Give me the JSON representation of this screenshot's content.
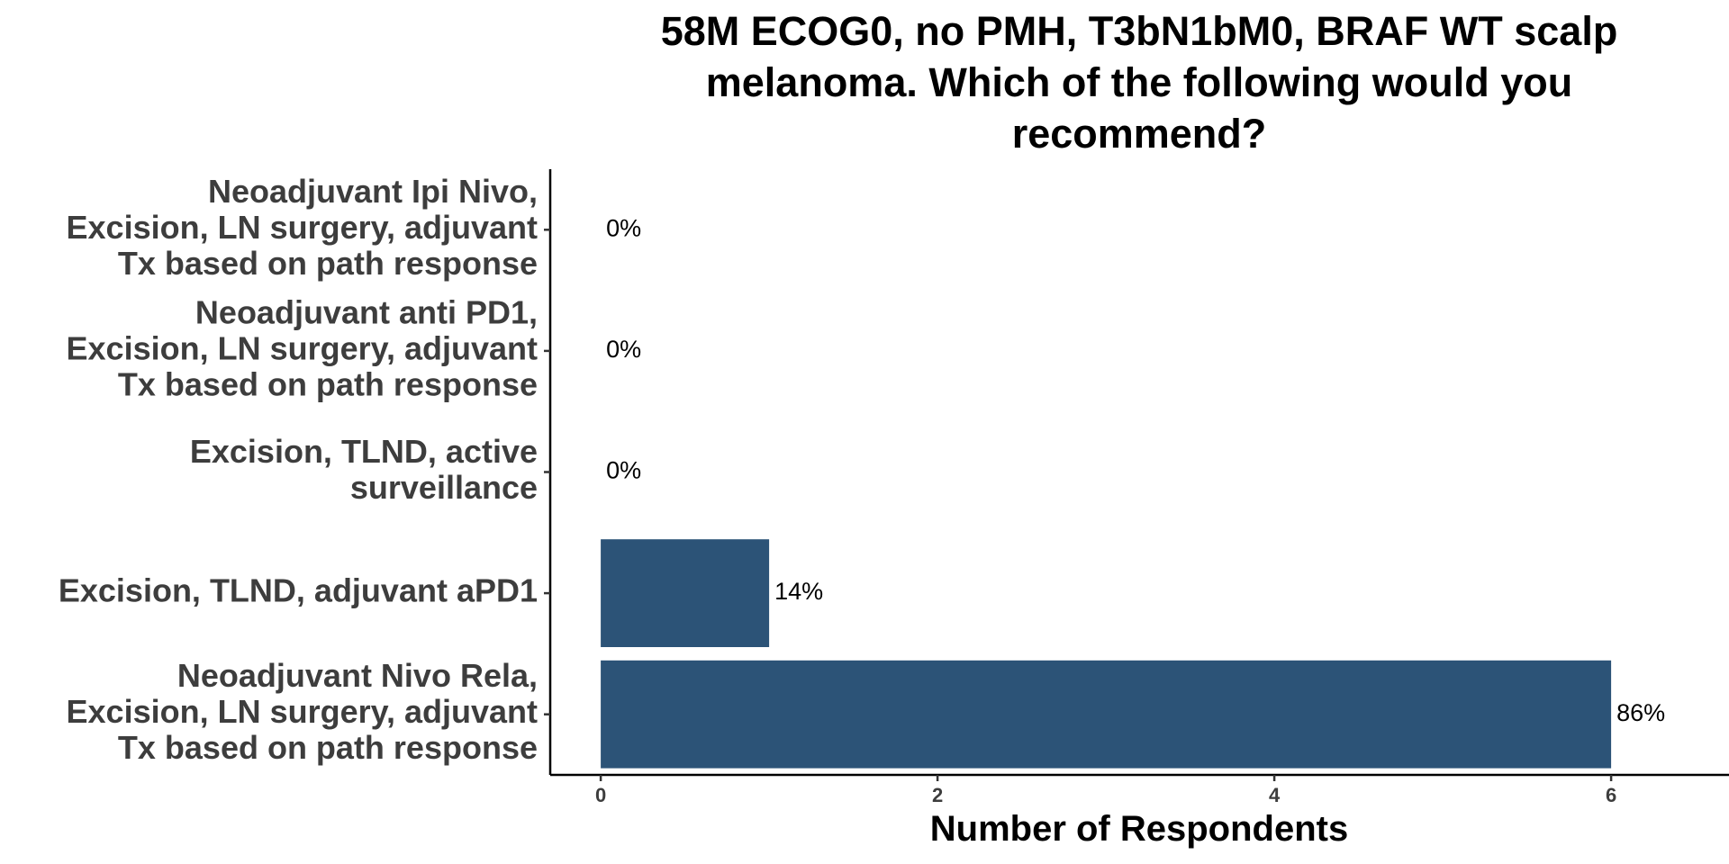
{
  "chart_data": {
    "type": "bar",
    "orientation": "horizontal",
    "title": "58M ECOG0, no PMH, T3bN1bM0, BRAF WT scalp melanoma. Which of the following would you recommend?",
    "title_lines": [
      "58M ECOG0, no PMH, T3bN1bM0, BRAF WT scalp",
      "melanoma. Which of the following would you",
      "recommend?"
    ],
    "xlabel": "Number of Respondents",
    "ylabel": "",
    "xlim": [
      -0.3,
      6.7
    ],
    "xticks": [
      0,
      2,
      4,
      6
    ],
    "grid": false,
    "bar_color": "#2c5377",
    "categories": [
      "Neoadjuvant Ipi Nivo, Excision, LN surgery, adjuvant Tx based on path response",
      "Neoadjuvant anti PD1, Excision, LN surgery, adjuvant Tx based on path response",
      "Excision, TLND, active surveillance",
      "Excision, TLND, adjuvant aPD1",
      "Neoadjuvant Nivo Rela, Excision, LN surgery, adjuvant Tx based on path response"
    ],
    "category_lines": [
      [
        "Neoadjuvant Ipi Nivo,",
        "Excision, LN surgery, adjuvant",
        "Tx based on path response"
      ],
      [
        "Neoadjuvant anti PD1,",
        "Excision, LN surgery, adjuvant",
        "Tx based on path response"
      ],
      [
        "Excision, TLND, active",
        "surveillance"
      ],
      [
        "Excision, TLND, adjuvant aPD1"
      ],
      [
        "Neoadjuvant Nivo Rela,",
        "Excision, LN surgery, adjuvant",
        "Tx based on path response"
      ]
    ],
    "values": [
      0,
      0,
      0,
      1,
      6
    ],
    "data_labels": [
      "0%",
      "0%",
      "0%",
      "14%",
      "86%"
    ]
  }
}
